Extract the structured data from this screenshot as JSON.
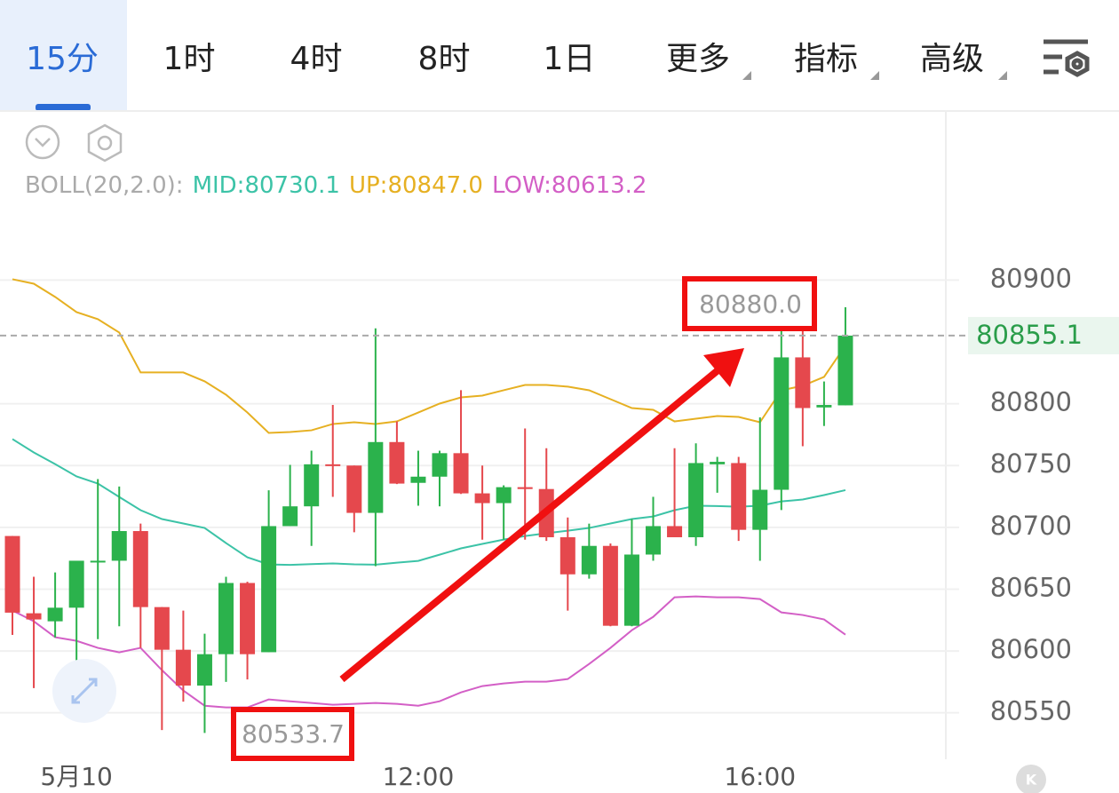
{
  "tabs": [
    "15分",
    "1时",
    "4时",
    "8时",
    "1日",
    "更多",
    "指标",
    "高级"
  ],
  "chart_data": {
    "type": "candlestick",
    "categories": [
      null,
      null,
      null,
      "5月10",
      null,
      null,
      null,
      null,
      null,
      null,
      null,
      null,
      null,
      null,
      null,
      null,
      null,
      null,
      null,
      "12:00",
      null,
      null,
      null,
      null,
      null,
      null,
      null,
      null,
      null,
      null,
      null,
      null,
      null,
      null,
      null,
      "16:00",
      null,
      null,
      null,
      null
    ],
    "open": [
      80693,
      80630.5,
      80624,
      80635,
      80672,
      80673,
      80697,
      80635.5,
      80601,
      80572,
      80597.4,
      80655,
      80599,
      80701,
      80717,
      80751,
      80750,
      80711.7,
      80769,
      80736,
      80741,
      80760,
      80727.5,
      80719.6,
      80732.5,
      80731,
      80692,
      80662,
      80685,
      80620.4,
      80678,
      80701,
      80692,
      80751,
      80752,
      80698,
      80730.4,
      80837.5,
      80797,
      80798.7
    ],
    "high": [
      80693,
      80660,
      80663.5,
      80673,
      80739,
      80733,
      80703,
      80635.5,
      80632.6,
      80614,
      80660,
      80656,
      80730,
      80750.5,
      80762,
      80799,
      80750,
      80861,
      80785.7,
      80762,
      80762,
      80811,
      80750,
      80734,
      80780,
      80764,
      80708,
      80703,
      80687,
      80706.7,
      80724.7,
      80764,
      80768,
      80757,
      80757,
      80789,
      80875.6,
      80880,
      80818,
      80878
    ],
    "low": [
      80613,
      80570,
      80611,
      80589.5,
      80609.6,
      80620,
      80602.5,
      80536,
      80559,
      80533.7,
      80575,
      80577,
      80599,
      80701,
      80685,
      80724.7,
      80696,
      80668.6,
      80735,
      80717.5,
      80717,
      80727,
      80690,
      80690,
      80690,
      80689,
      80632.6,
      80658.5,
      80620,
      80620,
      80673,
      80692,
      80685,
      80728,
      80689,
      80673,
      80714,
      80765.6,
      80782,
      80798.7
    ],
    "close": [
      80631,
      80625.5,
      80635,
      80673,
      80673,
      80697,
      80635.5,
      80601,
      80572,
      80597.4,
      80655,
      80597.4,
      80701,
      80717,
      80751,
      80750,
      80711.7,
      80769,
      80735.4,
      80741,
      80760,
      80727.5,
      80719.6,
      80732.5,
      80731,
      80692,
      80662,
      80685,
      80620.4,
      80678,
      80701,
      80692,
      80752,
      80753,
      80698,
      80730.4,
      80837.5,
      80796.5,
      80799,
      80855.1
    ],
    "up_color": "#2bb24c",
    "down_color": "#e5484d",
    "bands": {
      "label": "BOLL(20,2.0):",
      "series": [
        {
          "name": "MID:80730.1",
          "color": "#3cc3a7",
          "values": [
            80771.4,
            80760.6,
            80751.2,
            80741.2,
            80735.4,
            80724.6,
            80713.9,
            80706.7,
            80703.1,
            80699.5,
            80687.3,
            80675.8,
            80670,
            80669.6,
            80670.3,
            80670.8,
            80670.1,
            80669.8,
            80671.4,
            80672.9,
            80677.9,
            80683,
            80686.6,
            80690.1,
            80693,
            80695.2,
            80697.3,
            80699.5,
            80703.1,
            80706.7,
            80708.8,
            80713.9,
            80717.5,
            80717.2,
            80716.7,
            80717.5,
            80721,
            80722.5,
            80726.1,
            80730.1
          ]
        },
        {
          "name": "UP:80847.0",
          "color": "#e6b022",
          "values": [
            80900.7,
            80897.1,
            80886.4,
            80874.1,
            80868.4,
            80857.6,
            80825.3,
            80825.3,
            80825.3,
            80818.1,
            80807.3,
            80792.9,
            80776.4,
            80777.1,
            80778.5,
            80783.6,
            80785,
            80783.6,
            80785.7,
            80792.9,
            80800.1,
            80805.1,
            80806.6,
            80810.9,
            80815.2,
            80815.2,
            80813.8,
            80810.9,
            80803.7,
            80796.5,
            80795.1,
            80785.7,
            80787.9,
            80790,
            80789.3,
            80785,
            80810.9,
            80814.5,
            80821.7,
            80847.0
          ]
        },
        {
          "name": "LOW:80613.2",
          "color": "#d35fc6",
          "values": [
            80632.7,
            80624,
            80611.1,
            80608.2,
            80602.5,
            80598.9,
            80602.5,
            80584.5,
            80568,
            80555.7,
            80554.3,
            80554.3,
            80560.8,
            80559.3,
            80557.9,
            80556.5,
            80557.2,
            80557.9,
            80557.2,
            80555.7,
            80559.3,
            80566.5,
            80571.6,
            80573.7,
            80575.2,
            80575.2,
            80577.3,
            80589.5,
            80602.5,
            80616.8,
            80627.6,
            80643.4,
            80644.1,
            80643.4,
            80643.4,
            80642,
            80631.2,
            80629.1,
            80625.5,
            80613.2
          ]
        }
      ]
    },
    "ylim": [
      80516,
      80947
    ],
    "yticks": [
      80550,
      80600,
      80650,
      80700,
      80750,
      80800,
      80900
    ],
    "grid": true,
    "last_price": 80855.1,
    "annotations": [
      {
        "text": "80880.0"
      },
      {
        "text": "80533.7"
      }
    ]
  }
}
